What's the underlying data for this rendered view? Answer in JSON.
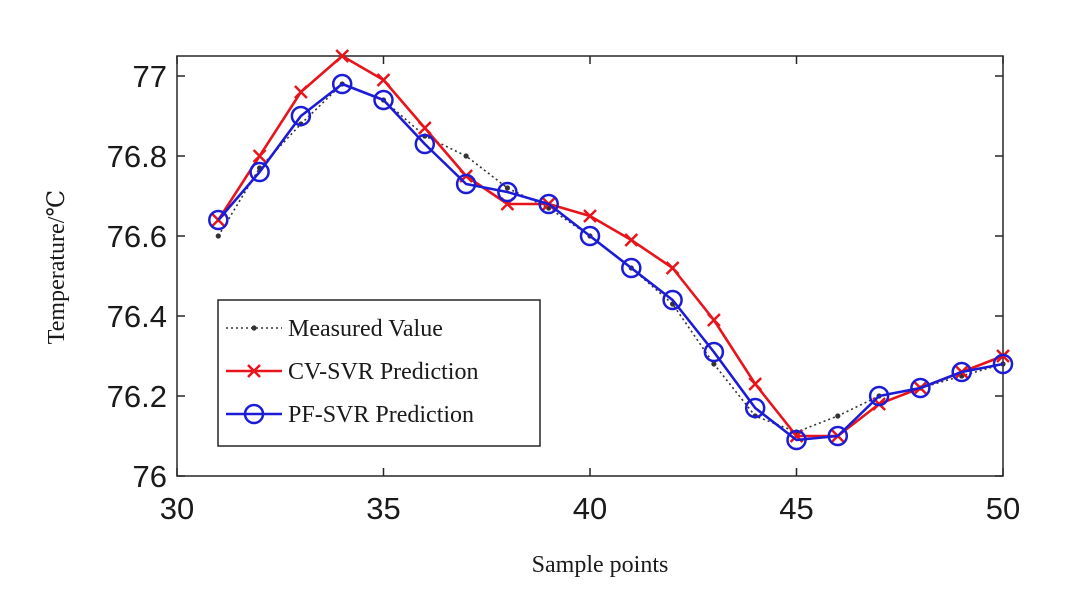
{
  "chart_data": {
    "type": "line",
    "xlabel": "Sample points",
    "ylabel": "Temperature/℃",
    "xlim": [
      30,
      50
    ],
    "ylim": [
      76,
      77.05
    ],
    "xticks": [
      30,
      35,
      40,
      45,
      50
    ],
    "yticks": [
      76,
      76.2,
      76.4,
      76.6,
      76.8,
      77
    ],
    "xtick_labels": [
      "30",
      "35",
      "40",
      "45",
      "50"
    ],
    "ytick_labels": [
      "76",
      "76.2",
      "76.4",
      "76.6",
      "76.8",
      "77"
    ],
    "grid": false,
    "legend_position": "bottom-left",
    "x": [
      31,
      32,
      33,
      34,
      35,
      36,
      37,
      38,
      39,
      40,
      41,
      42,
      43,
      44,
      45,
      46,
      47,
      48,
      49,
      50
    ],
    "series": [
      {
        "name": "Measured Value",
        "color": "#333333",
        "marker": "dot",
        "line_style": "dotted",
        "values": [
          76.6,
          76.77,
          76.88,
          76.98,
          76.94,
          76.85,
          76.8,
          76.72,
          76.67,
          76.6,
          76.52,
          76.43,
          76.28,
          76.15,
          76.11,
          76.15,
          76.2,
          76.22,
          76.25,
          76.28
        ]
      },
      {
        "name": "CV-SVR Prediction",
        "color": "#e8141b",
        "marker": "x",
        "line_style": "solid",
        "values": [
          76.64,
          76.8,
          76.96,
          77.05,
          76.99,
          76.87,
          76.75,
          76.68,
          76.68,
          76.65,
          76.59,
          76.52,
          76.39,
          76.23,
          76.1,
          76.1,
          76.18,
          76.22,
          76.26,
          76.3
        ]
      },
      {
        "name": "PF-SVR Prediction",
        "color": "#1c1cd6",
        "marker": "circle",
        "line_style": "solid",
        "values": [
          76.64,
          76.76,
          76.9,
          76.98,
          76.94,
          76.83,
          76.73,
          76.71,
          76.68,
          76.6,
          76.52,
          76.44,
          76.31,
          76.17,
          76.09,
          76.1,
          76.2,
          76.22,
          76.26,
          76.28
        ]
      }
    ]
  }
}
